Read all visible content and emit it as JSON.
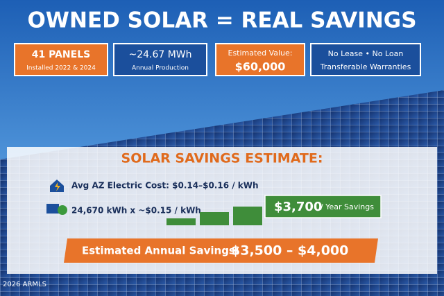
{
  "title": "OWNED SOLAR = REAL SAVINGS",
  "cards": [
    {
      "headline": "41 PANELS",
      "caption": "Installed 2022 & 2024"
    },
    {
      "headline": "~24.67 MWh",
      "caption": "Annual Production"
    },
    {
      "headline": "Estimated Value:",
      "caption": "$60,000"
    },
    {
      "headline": "No Lease • No Loan",
      "caption": "Transferable Warranties"
    }
  ],
  "estimate": {
    "heading": "SOLAR SAVINGS ESTIMATE:",
    "rows": [
      "Avg AZ Electric Cost: $0.14–$0.16 / kWh",
      "24,670 kWh x ~$0.15 / kWh"
    ],
    "badge": {
      "amount": "$3,700",
      "label": "/ Year Savings"
    },
    "banner": {
      "label": "Estimated Annual Savings:",
      "amount": "$3,500 – $4,000"
    }
  },
  "watermark": "2026 ARMLS"
}
